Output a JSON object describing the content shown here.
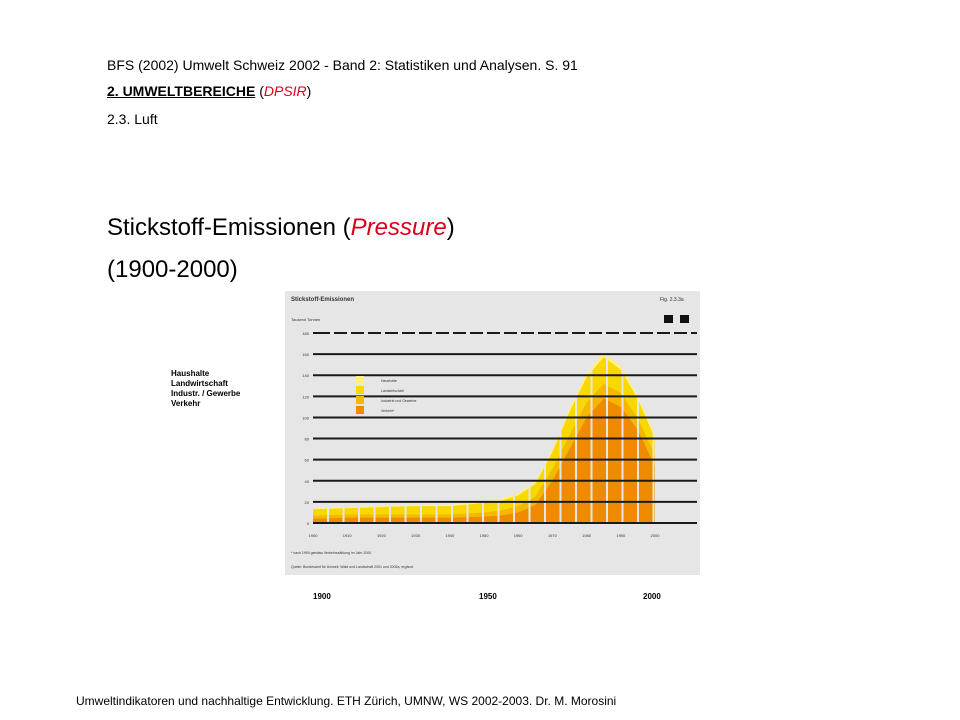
{
  "slide": {
    "source": "BFS (2002) Umwelt Schweiz 2002 - Band 2: Statistiken und Analysen. S. 91",
    "section_number_label": "2. UMWELTBEREICHE",
    "section_paren_open": " (",
    "section_dpsir": "DPSIR",
    "section_paren_close": ")",
    "subsection": "2.3. Luft",
    "title_main": "Stickstoff-Emissionen (",
    "title_pressure": "Pressure",
    "title_close": ")",
    "title_years": "(1900-2000)",
    "legend_labels": [
      "Haushalte",
      "Landwirtschaft",
      "Industr. / Gewerbe",
      "Verkehr"
    ],
    "year_labels": [
      "1900",
      "1950",
      "2000"
    ],
    "footer": "Umweltindikatoren und nachhaltige Entwicklung. ETH Zürich, UMNW, WS 2002-2003.  Dr. M. Morosini"
  },
  "chart_data": {
    "type": "area",
    "title": "Stickstoff-Emissionen",
    "fig_label": "Fig. 2.3.3a",
    "ylabel": "Tausend Tonnen",
    "ylim": [
      0,
      180
    ],
    "y_ticks": [
      0,
      20,
      40,
      60,
      80,
      100,
      120,
      140,
      160,
      180
    ],
    "x_ticks": [
      "1900",
      "1910",
      "1920",
      "1930",
      "1940",
      "1950",
      "1960",
      "1970",
      "1980",
      "1990",
      "2000"
    ],
    "x": [
      1900,
      1910,
      1920,
      1930,
      1940,
      1950,
      1955,
      1960,
      1965,
      1970,
      1975,
      1980,
      1985,
      1990,
      1995,
      2000
    ],
    "legend": [
      "Haushalte",
      "Landwirtschaft",
      "Industrie und Gewerbe",
      "Verkehr*"
    ],
    "footnote": "* nach 1990 gemäss Verkehrszählung im Jahr 2000",
    "source_note": "Quelle: Bundesamt für Umwelt, Wald und Landschaft 2001 und 2002a, ergänzt",
    "series": [
      {
        "name": "Verkehr*",
        "color": "#f08a00",
        "values": [
          4,
          5,
          5,
          5,
          5,
          6,
          7,
          10,
          17,
          40,
          70,
          100,
          118,
          110,
          88,
          54
        ]
      },
      {
        "name": "Industrie und Gewerbe",
        "color": "#f5b800",
        "values": [
          3,
          3,
          3,
          3,
          3,
          4,
          5,
          6,
          8,
          11,
          13,
          14,
          14,
          13,
          11,
          10
        ]
      },
      {
        "name": "Landwirtschaft",
        "color": "#f8d800",
        "values": [
          6,
          6,
          7,
          8,
          8,
          9,
          9,
          10,
          12,
          16,
          22,
          24,
          25,
          22,
          18,
          16
        ]
      },
      {
        "name": "Haushalte",
        "color": "#fff080",
        "values": [
          1,
          1,
          1,
          1,
          1,
          1,
          2,
          2,
          2,
          3,
          3,
          4,
          4,
          4,
          3,
          3
        ]
      }
    ]
  }
}
